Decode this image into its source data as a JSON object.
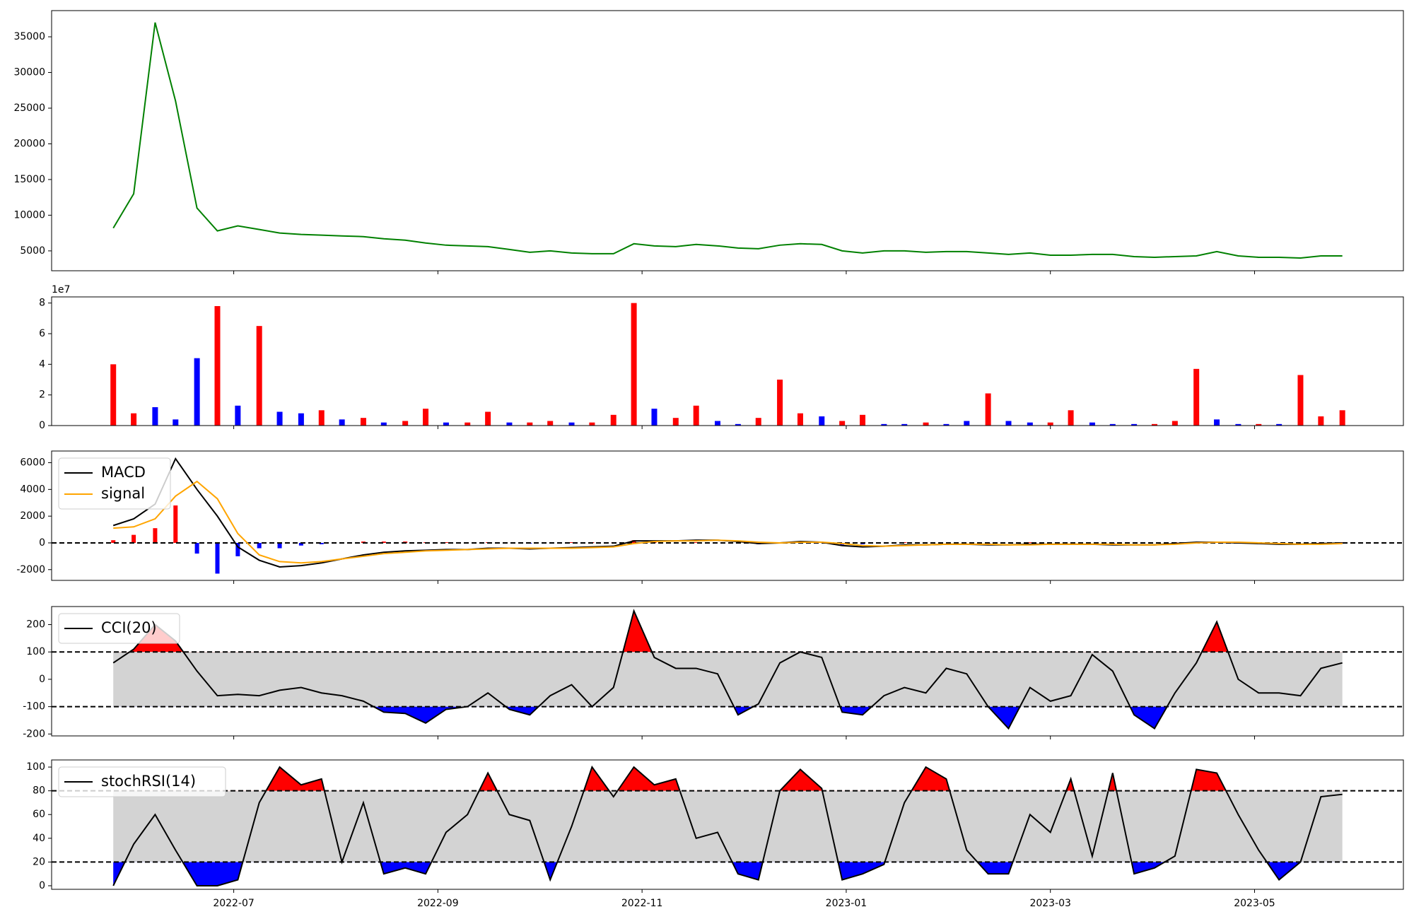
{
  "chart_data": {
    "x": [
      4.82,
      5.02,
      5.23,
      5.43,
      5.64,
      5.84,
      6.04,
      6.25,
      6.45,
      6.66,
      6.86,
      7.06,
      7.27,
      7.47,
      7.68,
      7.88,
      8.08,
      8.29,
      8.49,
      8.7,
      8.9,
      9.1,
      9.31,
      9.51,
      9.72,
      9.92,
      10.12,
      10.33,
      10.53,
      10.74,
      10.94,
      11.14,
      11.35,
      11.55,
      11.76,
      11.96,
      12.16,
      12.37,
      12.57,
      12.78,
      12.98,
      13.18,
      13.39,
      13.59,
      13.8,
      14.0,
      14.2,
      14.41,
      14.61,
      14.82,
      15.02,
      15.22,
      15.43,
      15.63,
      15.84,
      16.04,
      16.24,
      16.45,
      16.65,
      16.86
    ],
    "xlim": [
      4.216,
      17.458
    ],
    "xticks": [
      {
        "value": 6,
        "label": "2022-07"
      },
      {
        "value": 8,
        "label": "2022-09"
      },
      {
        "value": 10,
        "label": "2022-11"
      },
      {
        "value": 12,
        "label": "2023-01"
      },
      {
        "value": 14,
        "label": "2023-03"
      },
      {
        "value": 16,
        "label": "2023-05"
      }
    ],
    "panels": [
      {
        "type": "line",
        "ylim": [
          2215,
          38670
        ],
        "yticks": [
          5000,
          10000,
          15000,
          20000,
          25000,
          30000,
          35000
        ],
        "series": [
          {
            "color": "green",
            "values": [
              8200,
              13000,
              37000,
              26000,
              11000,
              7800,
              8500,
              8000,
              7500,
              7300,
              7200,
              7100,
              7000,
              6700,
              6500,
              6100,
              5800,
              5700,
              5600,
              5200,
              4800,
              5000,
              4700,
              4600,
              4600,
              6000,
              5700,
              5600,
              5900,
              5700,
              5400,
              5300,
              5800,
              6000,
              5900,
              5000,
              4700,
              5000,
              5000,
              4800,
              4900,
              4900,
              4700,
              4500,
              4700,
              4400,
              4400,
              4500,
              4500,
              4200,
              4100,
              4200,
              4300,
              4900,
              4300,
              4100,
              4100,
              4000,
              4300,
              4300
            ]
          }
        ]
      },
      {
        "type": "bar",
        "ylim": [
          0,
          8.4
        ],
        "yticks": [
          0,
          2,
          4,
          6,
          8
        ],
        "y_offset_label": "1e7",
        "values": [
          4.0,
          0.8,
          1.2,
          0.4,
          4.4,
          7.8,
          1.3,
          6.5,
          0.9,
          0.8,
          1.0,
          0.4,
          0.5,
          0.2,
          0.3,
          1.1,
          0.2,
          0.2,
          0.9,
          0.2,
          0.2,
          0.3,
          0.2,
          0.2,
          0.7,
          8.0,
          1.1,
          0.5,
          1.3,
          0.3,
          0.1,
          0.5,
          3.0,
          0.8,
          0.6,
          0.3,
          0.7,
          0.1,
          0.1,
          0.2,
          0.1,
          0.3,
          2.1,
          0.3,
          0.2,
          0.2,
          1.0,
          0.2,
          0.1,
          0.1,
          0.1,
          0.3,
          3.7,
          0.4,
          0.1,
          0.1,
          0.1,
          3.3,
          0.6,
          1.0
        ],
        "colors": [
          "red",
          "red",
          "blue",
          "blue",
          "blue",
          "red",
          "blue",
          "red",
          "blue",
          "blue",
          "red",
          "blue",
          "red",
          "blue",
          "red",
          "red",
          "blue",
          "red",
          "red",
          "blue",
          "red",
          "red",
          "blue",
          "red",
          "red",
          "red",
          "blue",
          "red",
          "red",
          "blue",
          "blue",
          "red",
          "red",
          "red",
          "blue",
          "red",
          "red",
          "blue",
          "blue",
          "red",
          "blue",
          "blue",
          "red",
          "blue",
          "blue",
          "red",
          "red",
          "blue",
          "blue",
          "blue",
          "red",
          "red",
          "red",
          "blue",
          "blue",
          "red",
          "blue",
          "red",
          "red",
          "red"
        ]
      },
      {
        "type": "macd",
        "ylim": [
          -2806,
          6874
        ],
        "yticks": [
          -2000,
          0,
          2000,
          4000,
          6000
        ],
        "reference_line": 0,
        "legend": "upper left",
        "series": [
          {
            "name": "MACD",
            "color": "black",
            "values": [
              1300,
              1800,
              2900,
              6300,
              4000,
              2000,
              -300,
              -1300,
              -1800,
              -1700,
              -1500,
              -1200,
              -900,
              -700,
              -600,
              -550,
              -500,
              -500,
              -400,
              -400,
              -450,
              -400,
              -350,
              -300,
              -250,
              150,
              150,
              150,
              200,
              200,
              100,
              -50,
              0,
              100,
              50,
              -200,
              -300,
              -250,
              -150,
              -150,
              -100,
              -100,
              -150,
              -150,
              -100,
              -100,
              -100,
              -100,
              -150,
              -150,
              -150,
              -50,
              50,
              50,
              0,
              -50,
              -100,
              -100,
              -50,
              0
            ]
          },
          {
            "name": "signal",
            "color": "orange",
            "values": [
              1100,
              1200,
              1800,
              3500,
              4600,
              3300,
              700,
              -900,
              -1400,
              -1500,
              -1400,
              -1200,
              -1000,
              -800,
              -700,
              -600,
              -550,
              -500,
              -450,
              -400,
              -400,
              -400,
              -400,
              -350,
              -300,
              -50,
              100,
              150,
              150,
              200,
              150,
              50,
              0,
              50,
              50,
              -50,
              -200,
              -250,
              -200,
              -150,
              -100,
              -100,
              -100,
              -150,
              -150,
              -100,
              -100,
              -100,
              -100,
              -150,
              -150,
              -100,
              0,
              50,
              50,
              0,
              -50,
              -100,
              -100,
              -50
            ]
          }
        ],
        "histogram": {
          "positive_color": "red",
          "negative_color": "blue",
          "values": [
            200,
            600,
            1100,
            2800,
            -800,
            -2300,
            -1000,
            -400,
            -400,
            -200,
            -100,
            0,
            100,
            100,
            100,
            50,
            50,
            0,
            50,
            0,
            -50,
            0,
            50,
            50,
            50,
            200,
            50,
            0,
            50,
            0,
            -50,
            -100,
            0,
            50,
            0,
            -150,
            -100,
            0,
            50,
            0,
            0,
            0,
            -50,
            0,
            50,
            0,
            0,
            0,
            -50,
            0,
            0,
            50,
            50,
            0,
            -50,
            -50,
            -50,
            0,
            50,
            50
          ]
        }
      },
      {
        "type": "band",
        "ylim": [
          -207,
          266
        ],
        "yticks": [
          -200,
          -100,
          0,
          100,
          200
        ],
        "upper": 100,
        "lower": -100,
        "band_color": "lightgray",
        "upper_fill": "red",
        "lower_fill": "blue",
        "legend": "upper left",
        "series": [
          {
            "name": "CCI(20)",
            "color": "black",
            "values": [
              60,
              110,
              200,
              140,
              30,
              -60,
              -55,
              -60,
              -40,
              -30,
              -50,
              -60,
              -80,
              -120,
              -125,
              -160,
              -110,
              -100,
              -50,
              -110,
              -130,
              -60,
              -20,
              -100,
              -30,
              250,
              80,
              40,
              40,
              20,
              -130,
              -90,
              60,
              100,
              80,
              -120,
              -130,
              -60,
              -30,
              -50,
              40,
              20,
              -100,
              -180,
              -30,
              -80,
              -60,
              90,
              30,
              -130,
              -180,
              -50,
              60,
              210,
              0,
              -50,
              -50,
              -60,
              40,
              60
            ]
          }
        ]
      },
      {
        "type": "band",
        "ylim": [
          -3,
          106
        ],
        "yticks": [
          0,
          20,
          40,
          60,
          80,
          100
        ],
        "upper": 80,
        "lower": 20,
        "band_color": "lightgray",
        "upper_fill": "red",
        "lower_fill": "blue",
        "legend": "upper left",
        "series": [
          {
            "name": "stochRSI(14)",
            "color": "black",
            "values": [
              0,
              35,
              60,
              30,
              0,
              0,
              5,
              70,
              100,
              85,
              90,
              20,
              70,
              10,
              15,
              10,
              45,
              60,
              95,
              60,
              55,
              5,
              50,
              100,
              75,
              100,
              85,
              90,
              40,
              45,
              10,
              5,
              80,
              98,
              82,
              5,
              10,
              18,
              70,
              100,
              90,
              30,
              10,
              10,
              60,
              45,
              90,
              25,
              95,
              10,
              15,
              25,
              98,
              95,
              60,
              30,
              5,
              20,
              75,
              77
            ]
          }
        ]
      }
    ]
  }
}
